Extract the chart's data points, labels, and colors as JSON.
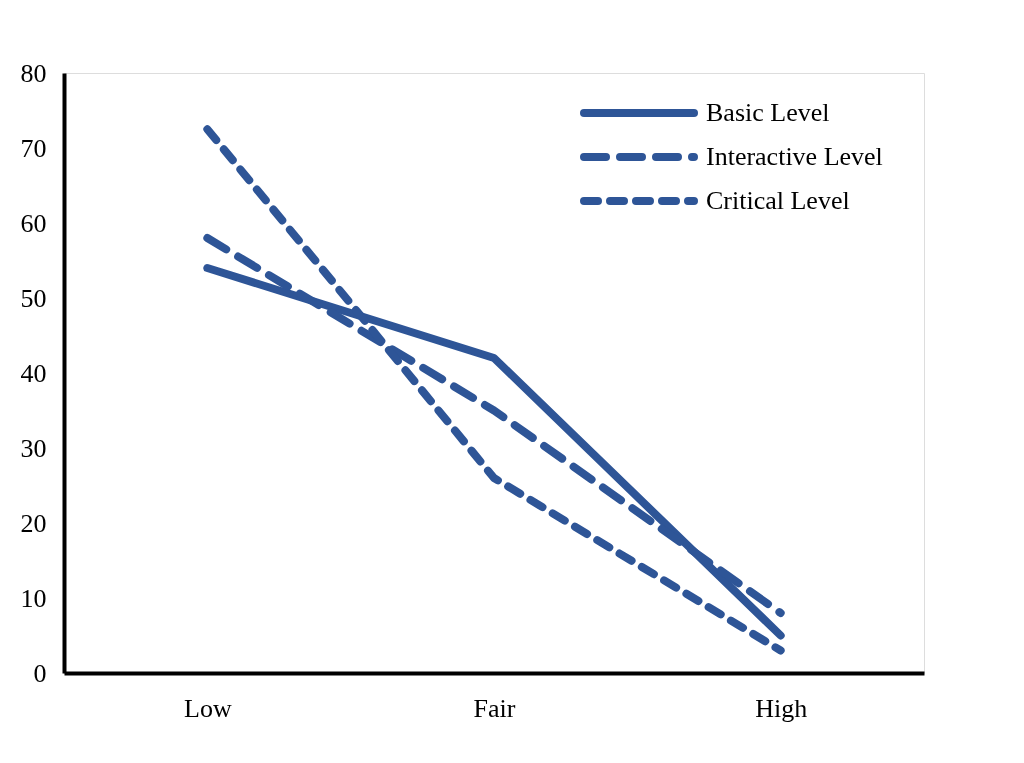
{
  "chart_data": {
    "type": "line",
    "categories": [
      "Low",
      "Fair",
      "High"
    ],
    "series": [
      {
        "name": "Basic Level",
        "color": "#2e5597",
        "line_style": "solid",
        "values": [
          54,
          42,
          5
        ]
      },
      {
        "name": "Interactive Level",
        "color": "#2e5597",
        "line_style": "dashed",
        "values": [
          58,
          35,
          8
        ]
      },
      {
        "name": "Critical Level",
        "color": "#2e5597",
        "line_style": "dotted",
        "values": [
          72.5,
          26,
          3
        ]
      }
    ],
    "ylim": [
      0,
      80
    ],
    "yticks": [
      0,
      10,
      20,
      30,
      40,
      50,
      60,
      70,
      80
    ],
    "grid": false,
    "legend": "top right"
  }
}
